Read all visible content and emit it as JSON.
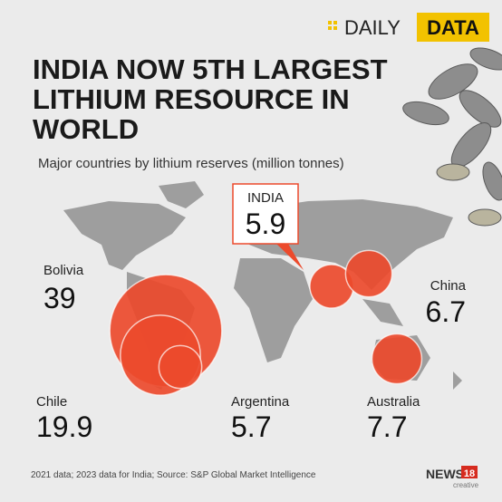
{
  "header": {
    "brand_left": "DAILY",
    "brand_right": "DATA"
  },
  "chart_data": {
    "type": "bubble-map",
    "title": "INDIA NOW 5TH LARGEST LITHIUM RESOURCE IN WORLD",
    "subtitle": "Major countries by lithium reserves (million tonnes)",
    "categories": [
      "Bolivia",
      "Chile",
      "Argentina",
      "INDIA",
      "China",
      "Australia"
    ],
    "values": [
      39,
      19.9,
      5.7,
      5.9,
      6.7,
      7.7
    ],
    "color": "#ec4a2c"
  },
  "footer": {
    "source": "2021 data; 2023 data for India; Source: S&P Global Market Intelligence",
    "logo": "NEWS",
    "logo_number": "18",
    "logo_sub": "creative"
  }
}
